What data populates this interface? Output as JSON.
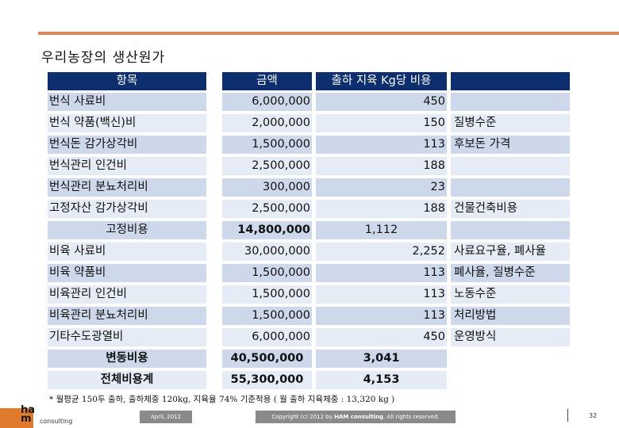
{
  "page_title": "우리농장의 생산원가",
  "table": {
    "headers": [
      "항목",
      "금액",
      "출하 지육 Kg당 비용",
      ""
    ],
    "rows": [
      {
        "item": "번식 사료비",
        "amount": "6,000,000",
        "per_kg": "450",
        "note": ""
      },
      {
        "item": "번식 약품(백신)비",
        "amount": "2,000,000",
        "per_kg": "150",
        "note": "질병수준"
      },
      {
        "item": "번식돈 감가상각비",
        "amount": "1,500,000",
        "per_kg": "113",
        "note": "후보돈 가격"
      },
      {
        "item": "번식관리 인건비",
        "amount": "2,500,000",
        "per_kg": "188",
        "note": ""
      },
      {
        "item": "번식관리 분뇨처리비",
        "amount": "300,000",
        "per_kg": "23",
        "note": ""
      },
      {
        "item": "고정자산 감가상각비",
        "amount": "2,500,000",
        "per_kg": "188",
        "note": "건물건축비용"
      },
      {
        "item": "고정비용",
        "amount": "14,800,000",
        "per_kg": "1,112",
        "note": ""
      },
      {
        "item": "비육 사료비",
        "amount": "30,000,000",
        "per_kg": "2,252",
        "note": "사료요구율, 폐사율"
      },
      {
        "item": "비육 약품비",
        "amount": "1,500,000",
        "per_kg": "113",
        "note": "폐사율, 질병수준"
      },
      {
        "item": "비육관리 인건비",
        "amount": "1,500,000",
        "per_kg": "113",
        "note": "노동수준"
      },
      {
        "item": "비육관리 분뇨처리비",
        "amount": "1,500,000",
        "per_kg": "113",
        "note": "처리방법"
      },
      {
        "item": "기타수도광열비",
        "amount": "6,000,000",
        "per_kg": "450",
        "note": "운영방식"
      },
      {
        "item": "변동비용",
        "amount": "40,500,000",
        "per_kg": "3,041",
        "note": ""
      },
      {
        "item": "전체비용계",
        "amount": "55,300,000",
        "per_kg": "4,153",
        "note": ""
      }
    ]
  },
  "footnote": "* 월평균 150두 출하, 출하체중 120kg, 지육율 74% 기준적용 ( 월 출하 지육체중 : 13,320 kg )",
  "footer": {
    "logo_text_top": "ha",
    "logo_text_bottom": "m",
    "logo_sub": "consulting",
    "date": "April, 2012",
    "copyright_prefix": "Copyright (c) 2012 by ",
    "copyright_brand": "HAM consulting",
    "copyright_suffix": ". All rights reserved.",
    "page_number": "32"
  },
  "colors": {
    "header_bg": "#0d2f6f",
    "row_medium": "#cdd8ea",
    "row_light": "#e6ecf5",
    "accent_rule": "#d9845a",
    "logo_orange": "#e07a2c"
  }
}
